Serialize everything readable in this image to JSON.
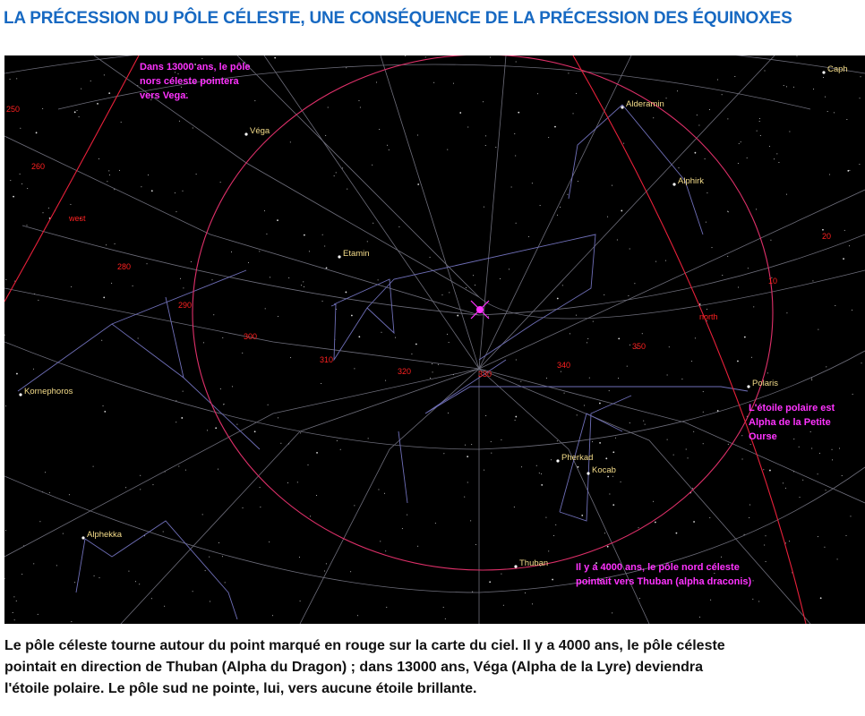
{
  "header": {
    "title": "LA PRÉCESSION DU PÔLE CÉLESTE, UNE CONSÉQUENCE DE LA PRÉCESSION DES ÉQUINOXES"
  },
  "map": {
    "stars": [
      "Caph",
      "Alderamin",
      "Alphirk",
      "Véga",
      "Etamin",
      "Kornephoros",
      "Polaris",
      "Pherkad",
      "Kocab",
      "Alphekka",
      "Thuban"
    ],
    "azimuth_labels": [
      "250",
      "260",
      "west",
      "280",
      "290",
      "300",
      "310",
      "320",
      "330",
      "340",
      "350",
      "north",
      "10",
      "20"
    ],
    "annotations": [
      {
        "lines": [
          "Dans 13000 ans, le pôle",
          "nors céleste pointera",
          "vers Vega."
        ]
      },
      {
        "lines": [
          "L'étoile polaire est",
          "Alpha de la Petite",
          "Ourse"
        ]
      },
      {
        "lines": [
          "Il y a 4000 ans, le pôle nord céleste",
          "pointait vers Thuban (alpha draconis)"
        ]
      }
    ]
  },
  "caption": {
    "lines": [
      "Le pôle céleste tourne autour du point marqué en rouge sur la carte du ciel. Il y a 4000 ans, le pôle céleste",
      "pointait en direction de Thuban (Alpha du Dragon) ; dans 13000 ans, Véga (Alpha de la Lyre) deviendra",
      "l'étoile polaire. Le pôle sud ne pointe, lui, vers aucune étoile brillante."
    ]
  }
}
